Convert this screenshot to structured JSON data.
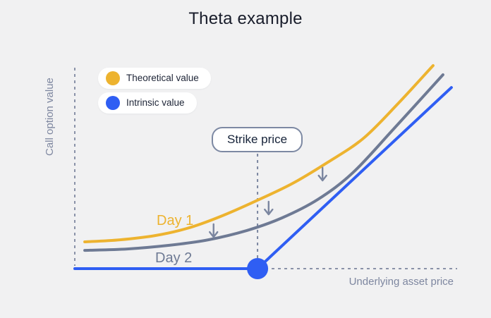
{
  "title": "Theta example",
  "colors": {
    "background": "#f1f1f2",
    "title_text": "#181c2a",
    "theoretical_line": "#edb32f",
    "day2_line": "#6e7a94",
    "intrinsic_line": "#2f5ef3",
    "axis_dash": "#8a92a8",
    "strike_dash": "#7b86a0",
    "arrow": "#7b86a0",
    "axis_label_text": "#7e87a0",
    "legend_text": "#1e2537",
    "pill_bg": "#ffffff",
    "strike_border": "#7d89a3"
  },
  "legend": {
    "items": [
      {
        "id": "theoretical",
        "label": "Theoretical value",
        "color": "#edb32f"
      },
      {
        "id": "intrinsic",
        "label": "Intrinsic value",
        "color": "#2f5ef3"
      }
    ]
  },
  "labels": {
    "y_axis": "Call option value",
    "x_axis": "Underlying asset price",
    "strike": "Strike price",
    "day1": "Day 1",
    "day2": "Day 2"
  },
  "chart_data": {
    "type": "line",
    "title": "Theta example",
    "xlabel": "Underlying asset price",
    "ylabel": "Call option value",
    "x_range": [
      0,
      1
    ],
    "y_range": [
      0,
      1
    ],
    "grid": false,
    "legend_position": "top-left",
    "axes_style": "dashed, unlabeled (conceptual diagram)",
    "description": "Conceptual theta-decay chart: a call option's theoretical value curve drops from Day 1 (yellow) to Day 2 (gray) while converging toward the hockey-stick intrinsic value (blue) that kinks upward at the strike price.",
    "series": [
      {
        "id": "theoretical-day1",
        "name": "Theoretical value (Day 1)",
        "color": "#edb32f",
        "shape": "smooth",
        "points": [
          [
            0.026,
            0.132
          ],
          [
            0.118,
            0.142
          ],
          [
            0.21,
            0.163
          ],
          [
            0.293,
            0.198
          ],
          [
            0.376,
            0.253
          ],
          [
            0.478,
            0.337
          ],
          [
            0.57,
            0.42
          ],
          [
            0.662,
            0.524
          ],
          [
            0.755,
            0.642
          ],
          [
            0.847,
            0.816
          ],
          [
            0.937,
            1.0
          ]
        ]
      },
      {
        "id": "theoretical-day2",
        "name": "Theoretical value (Day 2)",
        "color": "#6e7a94",
        "shape": "smooth",
        "points": [
          [
            0.026,
            0.09
          ],
          [
            0.137,
            0.097
          ],
          [
            0.247,
            0.115
          ],
          [
            0.349,
            0.142
          ],
          [
            0.45,
            0.188
          ],
          [
            0.542,
            0.25
          ],
          [
            0.635,
            0.34
          ],
          [
            0.727,
            0.472
          ],
          [
            0.834,
            0.688
          ],
          [
            0.963,
            0.955
          ]
        ]
      },
      {
        "id": "intrinsic",
        "name": "Intrinsic value",
        "color": "#2f5ef3",
        "shape": "polyline",
        "points": [
          [
            0.0,
            0.0
          ],
          [
            0.478,
            0.0
          ],
          [
            0.985,
            0.892
          ]
        ]
      }
    ],
    "annotations": {
      "strike_line": {
        "x": 0.478,
        "label": "Strike price"
      },
      "kink_marker": {
        "x": 0.478,
        "y": 0.0,
        "color": "#2f5ef3"
      },
      "theta_arrows": [
        {
          "x": 0.363,
          "y_from": 0.219,
          "y_to": 0.156
        },
        {
          "x": 0.507,
          "y_from": 0.33,
          "y_to": 0.267
        },
        {
          "x": 0.648,
          "y_from": 0.497,
          "y_to": 0.434
        }
      ]
    }
  }
}
